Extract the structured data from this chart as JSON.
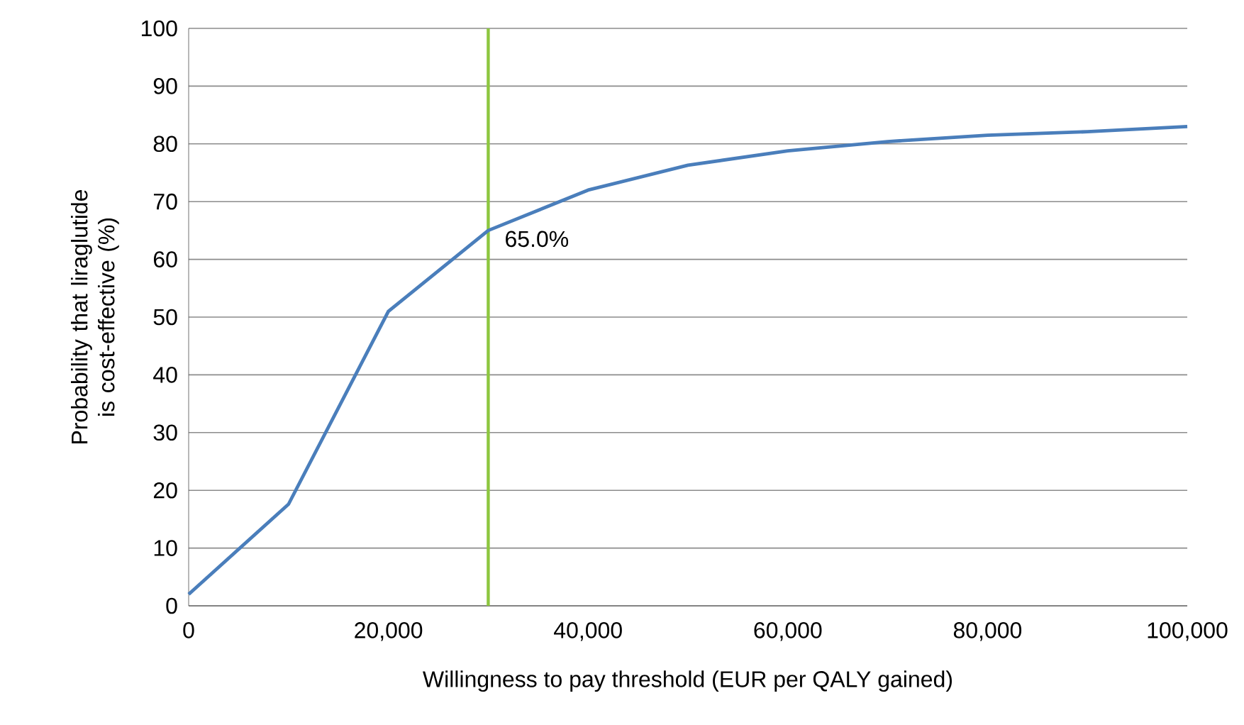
{
  "chart_data": {
    "type": "line",
    "xlabel": "Willingness to pay threshold (EUR per QALY gained)",
    "ylabel": "Probability that liraglutide is cost-effective (%)",
    "x": [
      0,
      10000,
      20000,
      30000,
      40000,
      50000,
      60000,
      70000,
      80000,
      90000,
      100000
    ],
    "series": [
      {
        "color": "#4a7ebb",
        "values": [
          2,
          17.6,
          51,
          65,
          72,
          76.3,
          78.8,
          80.4,
          81.5,
          82.1,
          83
        ]
      }
    ],
    "xlim": [
      0,
      100000
    ],
    "ylim": [
      0,
      100
    ],
    "xticks": [
      0,
      {
        "value": 20000,
        "label": "20,000"
      },
      {
        "value": 40000,
        "label": "40,000"
      },
      {
        "value": 60000,
        "label": "60,000"
      },
      {
        "value": 80000,
        "label": "80,000"
      },
      {
        "value": 100000,
        "label": "100,000"
      }
    ],
    "yticks": [
      0,
      10,
      20,
      30,
      40,
      50,
      60,
      70,
      80,
      90,
      100
    ],
    "grid": "y",
    "ref_lines": [
      {
        "axis": "x",
        "value": 30000,
        "color": "#8dc63f"
      }
    ],
    "annotations": [
      {
        "text": "65.0%",
        "x": 30000,
        "y": 65
      }
    ]
  }
}
